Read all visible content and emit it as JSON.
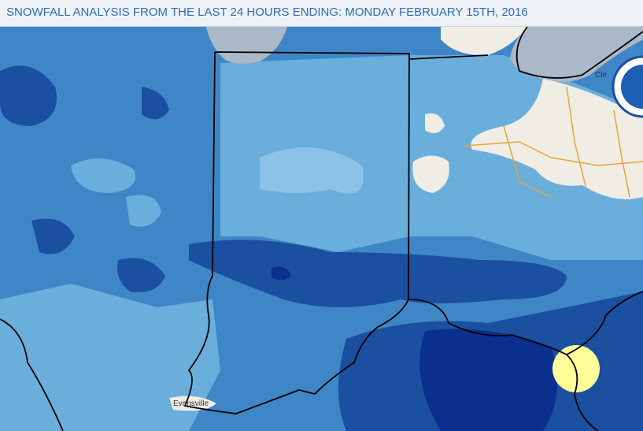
{
  "header": {
    "title": "SNOWFALL ANALYSIS FROM THE LAST 24 HOURS ENDING: MONDAY FEBRUARY 15TH, 2016"
  },
  "map": {
    "labels": [
      "Evansville",
      "Cle"
    ]
  }
}
